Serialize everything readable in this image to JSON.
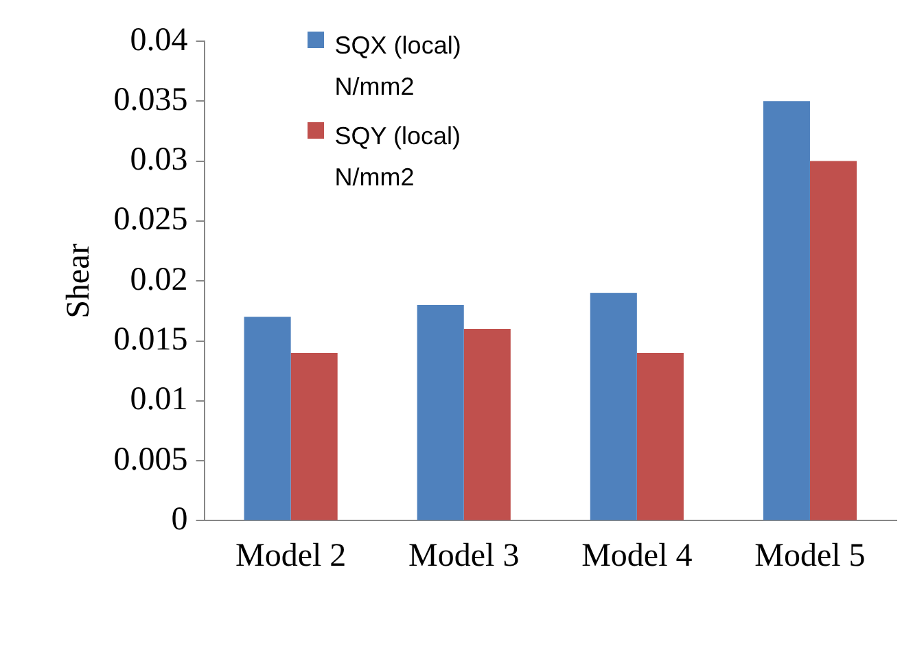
{
  "chart_data": {
    "type": "bar",
    "ylabel": "Shear",
    "categories": [
      "Model 2",
      "Model 3",
      "Model 4",
      "Model 5"
    ],
    "series": [
      {
        "name": "SQX (local) N/mm2",
        "color": "#4f81bd",
        "values": [
          0.017,
          0.018,
          0.019,
          0.035
        ]
      },
      {
        "name": "SQY (local) N/mm2",
        "color": "#c0504d",
        "values": [
          0.014,
          0.016,
          0.014,
          0.03
        ]
      }
    ],
    "ylim": [
      0,
      0.04
    ],
    "yticks": [
      0,
      0.005,
      0.01,
      0.015,
      0.02,
      0.025,
      0.03,
      0.035,
      0.04
    ],
    "grid": false,
    "legend": "top left"
  }
}
